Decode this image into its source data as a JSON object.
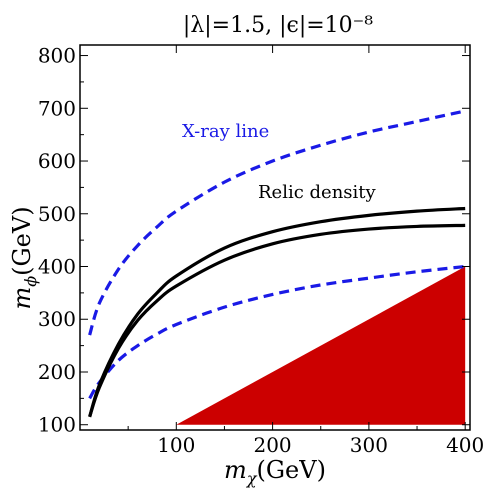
{
  "chart_data": {
    "type": "line",
    "title": "|λ|=1.5, |ϵ|=10⁻⁸",
    "xlabel": "m_χ(GeV)",
    "ylabel": "m_ϕ(GeV)",
    "xlim": [
      0,
      405
    ],
    "ylim": [
      90,
      820
    ],
    "x_ticks": [
      100,
      200,
      300,
      400
    ],
    "y_ticks": [
      100,
      200,
      300,
      400,
      500,
      600,
      700,
      800
    ],
    "grid": false,
    "annotations": [
      {
        "text": "X-ray line",
        "color": "#1a1ae6"
      },
      {
        "text": "Relic density",
        "color": "#000000"
      }
    ],
    "series": [
      {
        "style": "dashed",
        "color": "#1a1ae6",
        "x": [
          10,
          20,
          40,
          60,
          80,
          100,
          150,
          200,
          250,
          300,
          350,
          400
        ],
        "y": [
          270,
          330,
          395,
          440,
          475,
          505,
          560,
          600,
          630,
          655,
          675,
          695
        ]
      },
      {
        "style": "dashed",
        "color": "#1a1ae6",
        "x": [
          10,
          20,
          40,
          60,
          80,
          100,
          150,
          200,
          250,
          300,
          350,
          400
        ],
        "y": [
          150,
          180,
          222,
          250,
          272,
          290,
          323,
          347,
          365,
          378,
          390,
          400
        ]
      },
      {
        "style": "solid",
        "color": "#000000",
        "x": [
          10,
          20,
          40,
          60,
          80,
          100,
          150,
          200,
          250,
          300,
          350,
          400
        ],
        "y": [
          115,
          175,
          253,
          310,
          350,
          382,
          435,
          466,
          485,
          497,
          505,
          510
        ]
      },
      {
        "style": "solid",
        "color": "#000000",
        "x": [
          10,
          20,
          40,
          60,
          80,
          100,
          150,
          200,
          250,
          300,
          350,
          400
        ],
        "y": [
          115,
          170,
          245,
          298,
          335,
          363,
          412,
          443,
          461,
          471,
          476,
          478
        ]
      }
    ],
    "regions": [
      {
        "color": "#cc0000",
        "x": [
          100,
          400,
          400
        ],
        "y": [
          100,
          400,
          100
        ]
      }
    ]
  }
}
